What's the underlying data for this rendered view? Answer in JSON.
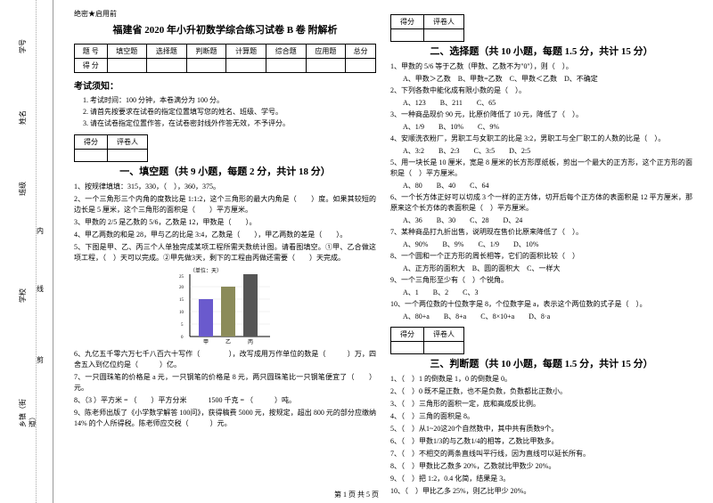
{
  "secret": "绝密★启用前",
  "title": "福建省 2020 年小升初数学综合练习试卷 B 卷 附解析",
  "score_table": {
    "headers": [
      "题 号",
      "填空题",
      "选择题",
      "判断题",
      "计算题",
      "综合题",
      "应用题",
      "总分"
    ],
    "row2": [
      "得 分",
      "",
      "",
      "",
      "",
      "",
      "",
      ""
    ]
  },
  "notice_header": "考试须知：",
  "notices": [
    "考试时间：100 分钟，本卷满分为 100 分。",
    "请首先按要求在试卷的指定位置填写您的姓名、班级、学号。",
    "请在试卷指定位置作答，在试卷密封线外作答无效，不予评分。"
  ],
  "score_box": {
    "c1": "得分",
    "c2": "评卷人"
  },
  "sec1": {
    "title": "一、填空题（共 9 小题，每题 2 分，共计 18 分）",
    "q1": "1、按规律填填：315，330，（　），360，375。",
    "q2": "2、一个三角形三个内角的度数比是 1:1:2，这个三角形的最大内角是（　　）度。如果其较短的边长是 5 厘米，这个三角形的面积是（　　）平方厘米。",
    "q3": "3、甲数的 2/5 是乙数的 5/6，乙数是 12，甲数是（　　）。",
    "q4": "4、甲乙两数的和是 28，甲与乙的比是 3:4，乙数是（　　），甲乙两数的差是（　　）。",
    "q5": "5、下图是甲、乙、丙三个人单独完成某项工程所需天数统计图。请看图填空。①甲、乙合做这项工程，（　）天可以完成。②甲先做3天，剩下的工程由丙做还需要（　　）天完成。",
    "q6": "6、九亿五千零六万七千八百六十写作（　　　　），改写成用万作单位的数是（　　　）万，四舍五入到亿位约是（　　　）亿。",
    "q7": "7、一只圆珠笔的价格是 a 元，一只钢笔的价格是 8 元，两只圆珠笔比一只钢笔便宜了（　　）元。",
    "q8": "8、（3 ）平方米 = （　　）平方分米　　　1500 千克 = （　　　）吨。",
    "q9": "9、陈老师出版了《小学数学解答 100问》，获得稿费 5000 元，按规定，超出 800 元的部分应缴纳 14% 的个人所得税。陈老师应交税（　　　）元。"
  },
  "chart": {
    "ylabel": "（单位：天）",
    "ymax": 25,
    "yticks": [
      0,
      5,
      10,
      15,
      20,
      25
    ],
    "bars": [
      {
        "label": "甲",
        "value": 15,
        "color": "#6a5acd"
      },
      {
        "label": "乙",
        "value": 20,
        "color": "#8b8b5a"
      },
      {
        "label": "丙",
        "value": 25,
        "color": "#555"
      }
    ],
    "bg": "#ffffff",
    "axis": "#000000"
  },
  "sec2": {
    "title": "二、选择题（共 10 小题，每题 1.5 分，共计 15 分）",
    "items": [
      {
        "q": "1、甲数的 5/6 等于乙数（甲数、乙数不为\"0\"），则（　）。",
        "o": "A、甲数＞乙数　B、甲数=乙数　C、甲数＜乙数　D、不确定"
      },
      {
        "q": "2、下列各数中能化成有限小数的是（　）。",
        "o": "A、123　　B、211　　C、65"
      },
      {
        "q": "3、一种商品现价 90 元，比原价降低了 10 元，降低了（　）。",
        "o": "A、1/9　　B、10%　　C、9%"
      },
      {
        "q": "4、安顺洗衣粉厂，男职工与女职工的比是 3:2，男职工与全厂职工的人数的比是（　）。",
        "o": "A、3:2　　B、2:3　　C、3:5　　D、2:5"
      },
      {
        "q": "5、用一块长是 10 厘米，宽是 8 厘米的长方形厚纸板，剪出一个最大的正方形，这个正方形的面积是（　）平方厘米。",
        "o": "A、80　　B、40　　C、64"
      },
      {
        "q": "6、一个长方体正好可以切成 3 个一样的正方体，切开后每个正方体的表面积是 12 平方厘米，那原来这个长方体的表面积是（　）平方厘米。",
        "o": "A、36　　B、30　　C、28　　D、24"
      },
      {
        "q": "7、某种商品打九折出售，说明现在售价比原来降低了（　）。",
        "o": "A、90%　　B、9%　　C、1/9　　D、10%"
      },
      {
        "q": "8、一个圆和一个正方形的周长相等，它们的面积比较（　）",
        "o": "A、正方形的面积大　B、圆的面积大　C、一样大"
      },
      {
        "q": "9、一个三角形至少有（　）个锐角。",
        "o": "A、1　　B、2　　C、3"
      },
      {
        "q": "10、一个两位数的十位数字是 8，个位数字是 a，表示这个两位数的式子是（　）。",
        "o": "A、80+a　　B、8+a　　C、8×10+a　　D、8·a"
      }
    ]
  },
  "sec3": {
    "title": "三、判断题（共 10 小题，每题 1.5 分，共计 15 分）",
    "items": [
      "1、（　）1 的倒数是 1，0 的倒数是 0。",
      "2、（　）0 既不是正数，也不是负数，负数都比正数小。",
      "3、（　）三角形的面积一定，底和高成反比例。",
      "4、（　）三角的面积是 8。",
      "5、（　）从1~20这20个自然数中，其中共有质数9个。",
      "6、（　）甲数1/3的与乙数1/4的相等，乙数比甲数多。",
      "7、（　）不相交的两条直线叫平行线，因为直线可以延长所有。",
      "8、（　）甲数比乙数多 20%，乙数就比甲数少 20%。",
      "9、（　）把 1:2，0.4 化简，结果是 3。",
      "10、（　）甲比乙多 25%，则乙比甲少 20%。"
    ]
  },
  "gutter_labels": {
    "g1": "学号",
    "g2": "姓名",
    "g3": "班级",
    "g4": "学校",
    "g5": "乡镇（街道）",
    "cut": "剪",
    "line": "线",
    "in": "内",
    "no": "不",
    "ans": "答"
  },
  "footer": "第 1 页 共 5 页"
}
